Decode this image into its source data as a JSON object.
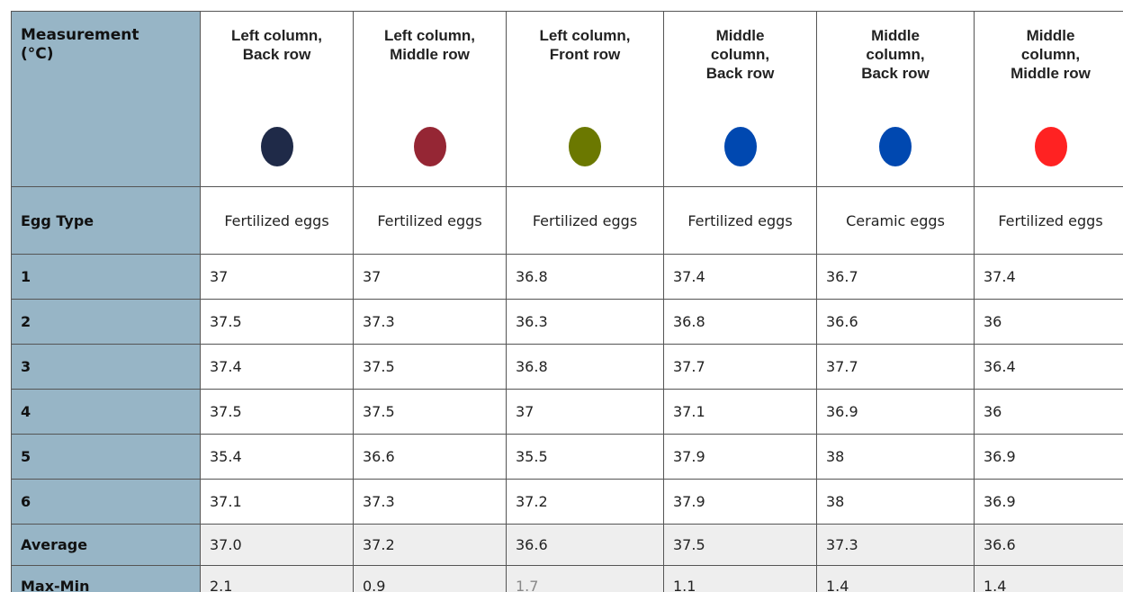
{
  "header": {
    "corner": "Measurement\n(°C)",
    "columns": [
      {
        "label": "Left column,\nBack row",
        "color": "#1f2a48"
      },
      {
        "label": "Left column,\nMiddle row",
        "color": "#952634"
      },
      {
        "label": "Left column,\nFront row",
        "color": "#6b7800"
      },
      {
        "label": "Middle\ncolumn,\nBack row",
        "color": "#0048b0"
      },
      {
        "label": "Middle\ncolumn,\nBack row",
        "color": "#0048b0"
      },
      {
        "label": "Middle\ncolumn,\nMiddle row",
        "color": "#ff2222"
      }
    ]
  },
  "rows": [
    {
      "label": "Egg Type",
      "cells": [
        "Fertilized eggs",
        "Fertilized eggs",
        "Fertilized eggs",
        "Fertilized eggs",
        "Ceramic eggs",
        "Fertilized eggs"
      ]
    },
    {
      "label": "1",
      "cells": [
        "37",
        "37",
        "36.8",
        "37.4",
        "36.7",
        "37.4"
      ]
    },
    {
      "label": "2",
      "cells": [
        "37.5",
        "37.3",
        "36.3",
        "36.8",
        "36.6",
        "36"
      ]
    },
    {
      "label": "3",
      "cells": [
        "37.4",
        "37.5",
        "36.8",
        "37.7",
        "37.7",
        "36.4"
      ]
    },
    {
      "label": "4",
      "cells": [
        "37.5",
        "37.5",
        "37",
        "37.1",
        "36.9",
        "36"
      ]
    },
    {
      "label": "5",
      "cells": [
        "35.4",
        "36.6",
        "35.5",
        "37.9",
        "38",
        "36.9"
      ]
    },
    {
      "label": "6",
      "cells": [
        "37.1",
        "37.3",
        "37.2",
        "37.9",
        "38",
        "36.9"
      ]
    },
    {
      "label": "Average",
      "cells": [
        "37.0",
        "37.2",
        "36.6",
        "37.5",
        "37.3",
        "36.6"
      ]
    },
    {
      "label": "Max-Min",
      "cells": [
        "2.1",
        "0.9",
        "1.7",
        "1.1",
        "1.4",
        "1.4"
      ]
    }
  ]
}
